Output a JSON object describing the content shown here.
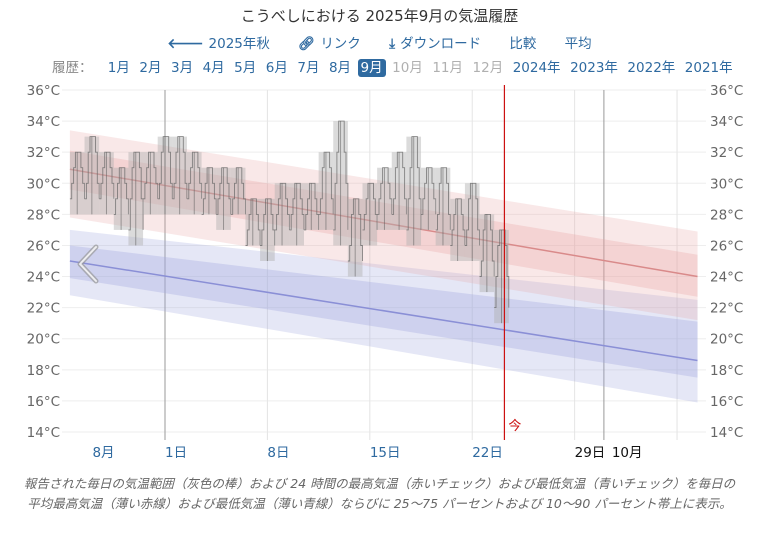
{
  "header": {
    "title": "こうべしにおける 2025年9月の気温履歴",
    "actions": [
      {
        "icon": "arrow-left-icon",
        "glyph": "🡐",
        "label": "2025年秋"
      },
      {
        "icon": "link-icon",
        "glyph": "🔗",
        "label": "リンク"
      },
      {
        "icon": "download-icon",
        "glyph": "⤓",
        "label": "ダウンロード"
      },
      {
        "icon": "",
        "glyph": "",
        "label": "比較"
      },
      {
        "icon": "",
        "glyph": "",
        "label": "平均"
      }
    ]
  },
  "history": {
    "label": "履歴：",
    "items": [
      {
        "label": "1月",
        "state": "link"
      },
      {
        "label": "2月",
        "state": "link"
      },
      {
        "label": "3月",
        "state": "link"
      },
      {
        "label": "4月",
        "state": "link"
      },
      {
        "label": "5月",
        "state": "link"
      },
      {
        "label": "6月",
        "state": "link"
      },
      {
        "label": "7月",
        "state": "link"
      },
      {
        "label": "8月",
        "state": "link"
      },
      {
        "label": "9月",
        "state": "selected"
      },
      {
        "label": "10月",
        "state": "disabled"
      },
      {
        "label": "11月",
        "state": "disabled"
      },
      {
        "label": "12月",
        "state": "disabled"
      },
      {
        "label": "2024年",
        "state": "link"
      },
      {
        "label": "2023年",
        "state": "link"
      },
      {
        "label": "2022年",
        "state": "link"
      },
      {
        "label": "2021年",
        "state": "link"
      }
    ]
  },
  "colors": {
    "accent": "#2f6aa0",
    "now_line": "#cc1111",
    "high_band": "#e9a3a3",
    "low_band": "#a3a8e0",
    "high_line": "#d98a8a",
    "low_line": "#8a8fd6",
    "daily_bar": "#b0b0b0"
  },
  "caption": "報告された毎日の気温範囲（灰色の棒）および 24 時間の最高気温（赤いチェック）および最低気温（青いチェック）を毎日の平均最高気温（薄い赤線）および最低気温（薄い青線）ならびに 25～75 パーセントおよび 10～90 パーセント帯上に表示。",
  "chart_data": {
    "type": "area",
    "title": "こうべしにおける 2025年9月の気温履歴",
    "y_unit": "°C",
    "ylim": [
      14,
      36
    ],
    "y_ticks": [
      "14°C",
      "16°C",
      "18°C",
      "20°C",
      "22°C",
      "24°C",
      "26°C",
      "28°C",
      "30°C",
      "32°C",
      "34°C",
      "36°C"
    ],
    "x_unit": "day (1 = 9月1日)",
    "xlim": [
      -5.5,
      37.4
    ],
    "x_ticks": [
      {
        "day": -3,
        "label": "8月",
        "color": "#2f6aa0"
      },
      {
        "day": 1,
        "label": "1日",
        "color": "#2f6aa0"
      },
      {
        "day": 8,
        "label": "8日",
        "color": "#2f6aa0"
      },
      {
        "day": 15,
        "label": "15日",
        "color": "#2f6aa0"
      },
      {
        "day": 22,
        "label": "22日",
        "color": "#2f6aa0"
      },
      {
        "day": 29,
        "label": "29日",
        "color": "#111111"
      },
      {
        "day": 32.5,
        "label": "10月",
        "color": "#111111"
      }
    ],
    "gridlines_days": [
      1,
      8,
      15,
      22,
      29,
      31,
      36
    ],
    "now_day": 24.2,
    "now_label": "今",
    "average_high": {
      "days": [
        -5.5,
        37.4
      ],
      "mean": [
        30.9,
        24.0
      ],
      "p25": [
        29.6,
        22.7
      ],
      "p75": [
        32.1,
        25.4
      ],
      "p10": [
        27.8,
        21.2
      ],
      "p90": [
        33.4,
        26.9
      ]
    },
    "average_low": {
      "days": [
        -5.5,
        37.4
      ],
      "mean": [
        25.0,
        18.6
      ],
      "p25": [
        23.9,
        17.5
      ],
      "p75": [
        26.0,
        21.1
      ],
      "p10": [
        22.8,
        15.9
      ],
      "p90": [
        27.0,
        22.5
      ]
    },
    "daily": {
      "days": [
        -5,
        -4,
        -3,
        -2,
        -1,
        0,
        1,
        2,
        3,
        4,
        5,
        6,
        7,
        8,
        9,
        10,
        11,
        12,
        13,
        14,
        15,
        16,
        17,
        18,
        19,
        20,
        21,
        22,
        23,
        24
      ],
      "max": [
        32,
        33,
        32,
        31,
        32,
        32,
        33,
        33,
        32,
        31,
        31,
        31,
        29,
        29,
        30,
        30,
        30,
        32,
        34,
        29,
        30,
        31,
        32,
        33,
        31,
        31,
        29,
        30,
        28,
        27
      ],
      "min": [
        28,
        28,
        28,
        27,
        26,
        28,
        28,
        28,
        28,
        28,
        27,
        28,
        26,
        25,
        26,
        26,
        27,
        27,
        26,
        24,
        26,
        27,
        27,
        26,
        27,
        26,
        25,
        25,
        23,
        21
      ]
    }
  }
}
